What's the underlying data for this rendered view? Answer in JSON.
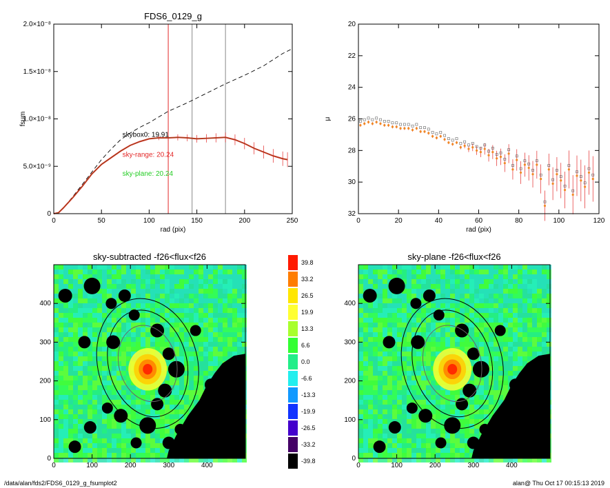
{
  "footer": {
    "path": "/data/alan/fds2/FDS6_0129_g_fsumplot2",
    "user_time": "alan@  Thu Oct 17 00:15:13 2019"
  },
  "colors": {
    "black": "#000000",
    "red": "#e32626",
    "brown": "#8b4b16",
    "orange": "#f08a24",
    "green": "#22cc22",
    "gray": "#888888"
  },
  "chart_data": [
    {
      "id": "fsum",
      "type": "line",
      "title": "FDS6_0129_g",
      "xlabel": "rad (pix)",
      "ylabel": "fsum",
      "xlim": [
        0,
        250
      ],
      "ylim": [
        0,
        2e-08
      ],
      "xticks": [
        0,
        50,
        100,
        150,
        200,
        250
      ],
      "yticks": [
        {
          "v": 0,
          "label": "0"
        },
        {
          "v": 5e-09,
          "label": "5.0×10⁻⁹"
        },
        {
          "v": 1e-08,
          "label": "1.0×10⁻⁸"
        },
        {
          "v": 1.5e-08,
          "label": "1.5×10⁻⁸"
        },
        {
          "v": 2e-08,
          "label": "2.0×10⁻⁸"
        }
      ],
      "vlines": [
        {
          "x": 120,
          "color": "red"
        },
        {
          "x": 145,
          "color": "gray"
        },
        {
          "x": 180,
          "color": "gray"
        }
      ],
      "series": [
        {
          "style": "dashed",
          "x": [
            0,
            5,
            10,
            20,
            30,
            40,
            50,
            60,
            70,
            80,
            90,
            100,
            110,
            120,
            140,
            160,
            180,
            200,
            220,
            240,
            250
          ],
          "y": [
            0,
            1e-10,
            6e-10,
            1.8e-09,
            3.1e-09,
            4.4e-09,
            5.7e-09,
            6.8e-09,
            7.8e-09,
            8.5e-09,
            9.1e-09,
            9.6e-09,
            1.02e-08,
            1.08e-08,
            1.17e-08,
            1.27e-08,
            1.37e-08,
            1.46e-08,
            1.56e-08,
            1.69e-08,
            1.74e-08
          ]
        },
        {
          "style": "solid",
          "x": [
            0,
            5,
            10,
            20,
            30,
            40,
            50,
            60,
            70,
            80,
            90,
            100,
            110,
            120,
            130,
            140,
            150,
            160,
            170,
            180,
            190,
            200,
            210,
            220,
            230,
            240,
            245
          ],
          "y": [
            0,
            1e-10,
            6e-10,
            1.7e-09,
            2.9e-09,
            4.2e-09,
            5.2e-09,
            5.9e-09,
            6.6e-09,
            7.2e-09,
            7.6e-09,
            7.9e-09,
            8e-09,
            8e-09,
            8.05e-09,
            8e-09,
            7.9e-09,
            7.95e-09,
            8e-09,
            8.05e-09,
            7.8e-09,
            7.4e-09,
            6.9e-09,
            6.5e-09,
            6.1e-09,
            5.8e-09,
            5.7e-09
          ]
        }
      ],
      "annotations": [
        {
          "text": "skybox0: 19.91",
          "color": "black",
          "x": 72,
          "y": 8.1e-09
        },
        {
          "text": "sky-range: 20.24",
          "color": "red",
          "x": 72,
          "y": 6e-09
        },
        {
          "text": "sky-plane: 20.24",
          "color": "green",
          "x": 72,
          "y": 4e-09
        }
      ]
    },
    {
      "id": "mu",
      "type": "scatter",
      "xlabel": "rad (pix)",
      "ylabel": "μ",
      "xlim": [
        0,
        120
      ],
      "ylim": [
        32,
        20
      ],
      "xticks": [
        0,
        20,
        40,
        60,
        80,
        100,
        120
      ],
      "yticks": [
        20,
        22,
        24,
        26,
        28,
        30,
        32
      ],
      "series": [
        {
          "x": [
            1,
            3,
            5,
            7,
            9,
            11,
            13,
            15,
            17,
            19,
            21,
            23,
            25,
            27,
            29,
            31,
            33,
            35,
            37,
            39,
            41,
            43,
            45,
            47,
            49,
            51,
            53,
            55,
            57,
            59,
            61,
            63,
            65,
            67,
            69,
            71,
            73,
            75,
            77,
            79,
            81,
            83,
            85,
            87,
            89,
            91,
            93,
            95,
            97,
            99,
            101,
            103,
            105,
            107,
            109,
            111,
            113,
            115,
            117
          ],
          "y": [
            26.4,
            26.3,
            26.2,
            26.3,
            26.2,
            26.3,
            26.4,
            26.4,
            26.5,
            26.5,
            26.6,
            26.6,
            26.6,
            26.7,
            26.6,
            26.8,
            26.8,
            26.9,
            27.1,
            27.2,
            27.1,
            27.3,
            27.5,
            27.6,
            27.5,
            27.8,
            27.7,
            27.9,
            27.8,
            28.0,
            28.1,
            27.9,
            28.3,
            28.1,
            28.5,
            28.4,
            28.8,
            28.2,
            29.2,
            28.6,
            29.4,
            28.9,
            29.1,
            29.5,
            28.9,
            29.8,
            31.5,
            29.2,
            30.1,
            29.5,
            29.9,
            30.5,
            29.2,
            30.8,
            29.6,
            29.9,
            30.3,
            29.4,
            29.8
          ]
        }
      ]
    },
    {
      "id": "img1",
      "type": "heatmap",
      "title": "sky-subtracted -f26<flux<f26",
      "xlim": [
        0,
        500
      ],
      "ylim": [
        0,
        500
      ],
      "xticks": [
        0,
        100,
        200,
        300,
        400
      ],
      "yticks": [
        0,
        100,
        200,
        300,
        400
      ]
    },
    {
      "id": "img2",
      "type": "heatmap",
      "title": "sky-plane -f26<flux<f26",
      "xlim": [
        0,
        500
      ],
      "ylim": [
        0,
        500
      ],
      "xticks": [
        0,
        100,
        200,
        300,
        400
      ],
      "yticks": [
        0,
        100,
        200,
        300,
        400
      ]
    },
    {
      "id": "colorbar",
      "type": "table",
      "levels": [
        {
          "label": "39.8",
          "color": "#ff1a00"
        },
        {
          "label": "33.2",
          "color": "#ff7d00"
        },
        {
          "label": "26.5",
          "color": "#ffe600"
        },
        {
          "label": "19.9",
          "color": "#ffff33"
        },
        {
          "label": "13.3",
          "color": "#a8ff2e"
        },
        {
          "label": "6.6",
          "color": "#33ff33"
        },
        {
          "label": "0.0",
          "color": "#22ee88"
        },
        {
          "label": "-6.6",
          "color": "#22eeee"
        },
        {
          "label": "-13.3",
          "color": "#1199ff"
        },
        {
          "label": "-19.9",
          "color": "#1133ff"
        },
        {
          "label": "-26.5",
          "color": "#4400cc"
        },
        {
          "label": "-33.2",
          "color": "#440066"
        },
        {
          "label": "-39.8",
          "color": "#000000"
        }
      ]
    }
  ]
}
